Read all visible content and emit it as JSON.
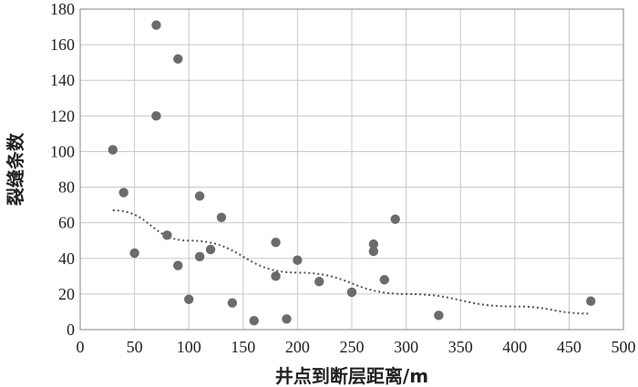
{
  "chart_data": {
    "type": "scatter",
    "xlabel": "井点到断层距离/m",
    "ylabel": "裂缝条数",
    "xlim": [
      0,
      500
    ],
    "ylim": [
      0,
      180
    ],
    "xticks": [
      0,
      50,
      100,
      150,
      200,
      250,
      300,
      350,
      400,
      450,
      500
    ],
    "yticks": [
      0,
      20,
      40,
      60,
      80,
      100,
      120,
      140,
      160,
      180
    ],
    "grid": true,
    "legend": "none",
    "point_color": "#6b6b6b",
    "trend_color": "#555555",
    "points": [
      {
        "x": 30,
        "y": 101
      },
      {
        "x": 40,
        "y": 77
      },
      {
        "x": 50,
        "y": 43
      },
      {
        "x": 70,
        "y": 171
      },
      {
        "x": 70,
        "y": 120
      },
      {
        "x": 80,
        "y": 53
      },
      {
        "x": 90,
        "y": 152
      },
      {
        "x": 90,
        "y": 36
      },
      {
        "x": 100,
        "y": 17
      },
      {
        "x": 110,
        "y": 75
      },
      {
        "x": 110,
        "y": 41
      },
      {
        "x": 120,
        "y": 45
      },
      {
        "x": 130,
        "y": 63
      },
      {
        "x": 140,
        "y": 15
      },
      {
        "x": 160,
        "y": 5
      },
      {
        "x": 180,
        "y": 49
      },
      {
        "x": 180,
        "y": 30
      },
      {
        "x": 190,
        "y": 6
      },
      {
        "x": 200,
        "y": 39
      },
      {
        "x": 220,
        "y": 27
      },
      {
        "x": 250,
        "y": 21
      },
      {
        "x": 270,
        "y": 48
      },
      {
        "x": 270,
        "y": 44
      },
      {
        "x": 280,
        "y": 28
      },
      {
        "x": 290,
        "y": 62
      },
      {
        "x": 330,
        "y": 8
      },
      {
        "x": 470,
        "y": 16
      }
    ],
    "trendline": {
      "type": "exponential",
      "points": [
        {
          "x": 30,
          "y": 67
        },
        {
          "x": 100,
          "y": 50
        },
        {
          "x": 200,
          "y": 32
        },
        {
          "x": 300,
          "y": 20
        },
        {
          "x": 400,
          "y": 13
        },
        {
          "x": 470,
          "y": 9
        }
      ]
    }
  }
}
